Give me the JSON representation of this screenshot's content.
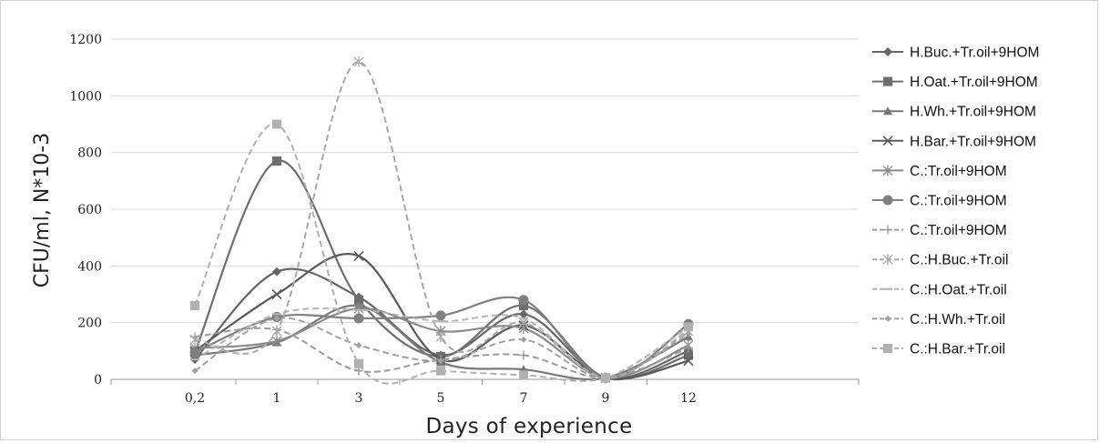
{
  "chart_data": {
    "type": "line",
    "ylabel": "CFU/ml, N*10-3",
    "xlabel": "Days of experience",
    "ylim": [
      0,
      1200
    ],
    "yticks": [
      0,
      200,
      400,
      600,
      800,
      1000,
      1200
    ],
    "categories": [
      "0,2",
      "1",
      "3",
      "5",
      "7",
      "9",
      "12"
    ],
    "grid": "horizontal",
    "legend_position": "right",
    "series": [
      {
        "name": "H.Buc.+Tr.oil+9HOM",
        "values": [
          70,
          380,
          290,
          85,
          230,
          5,
          100
        ],
        "color": "#666666",
        "dash": false,
        "marker": "diamond"
      },
      {
        "name": "H.Oat.+Tr.oil+9HOM",
        "values": [
          95,
          770,
          280,
          80,
          260,
          5,
          85
        ],
        "color": "#6e6e6e",
        "dash": false,
        "marker": "square"
      },
      {
        "name": "H.Wh.+Tr.oil+9HOM",
        "values": [
          85,
          130,
          260,
          60,
          35,
          5,
          150
        ],
        "color": "#787878",
        "dash": false,
        "marker": "triangle"
      },
      {
        "name": "H.Bar.+Tr.oil+9HOM",
        "values": [
          100,
          300,
          435,
          70,
          190,
          5,
          65
        ],
        "color": "#5a5a5a",
        "dash": false,
        "marker": "x"
      },
      {
        "name": "C.:Tr.oil+9HOM",
        "values": [
          110,
          135,
          250,
          170,
          180,
          5,
          120
        ],
        "color": "#8a8a8a",
        "dash": false,
        "marker": "star"
      },
      {
        "name": "C.:Tr.oil+9HOM",
        "values": [
          95,
          220,
          215,
          225,
          280,
          5,
          195
        ],
        "color": "#808080",
        "dash": false,
        "marker": "circle"
      },
      {
        "name": "C.:Tr.oil+9HOM",
        "values": [
          150,
          175,
          30,
          70,
          85,
          5,
          110
        ],
        "color": "#9a9a9a",
        "dash": true,
        "marker": "plus"
      },
      {
        "name": "C.:H.Buc.+Tr.oil",
        "values": [
          140,
          170,
          1120,
          150,
          200,
          5,
          170
        ],
        "color": "#a8a8a8",
        "dash": true,
        "marker": "asterisk"
      },
      {
        "name": "C.:H.Oat.+Tr.oil",
        "values": [
          70,
          230,
          245,
          205,
          215,
          5,
          175
        ],
        "color": "#b4b4b4",
        "dash": true,
        "marker": "dash"
      },
      {
        "name": "C.:H.Wh.+Tr.oil",
        "values": [
          30,
          215,
          120,
          65,
          140,
          5,
          160
        ],
        "color": "#a0a0a0",
        "dash": true,
        "marker": "small-diamond"
      },
      {
        "name": "C.:H.Bar.+Tr.oil",
        "values": [
          260,
          900,
          55,
          30,
          15,
          5,
          185
        ],
        "color": "#b0b0b0",
        "dash": true,
        "marker": "square"
      }
    ]
  }
}
